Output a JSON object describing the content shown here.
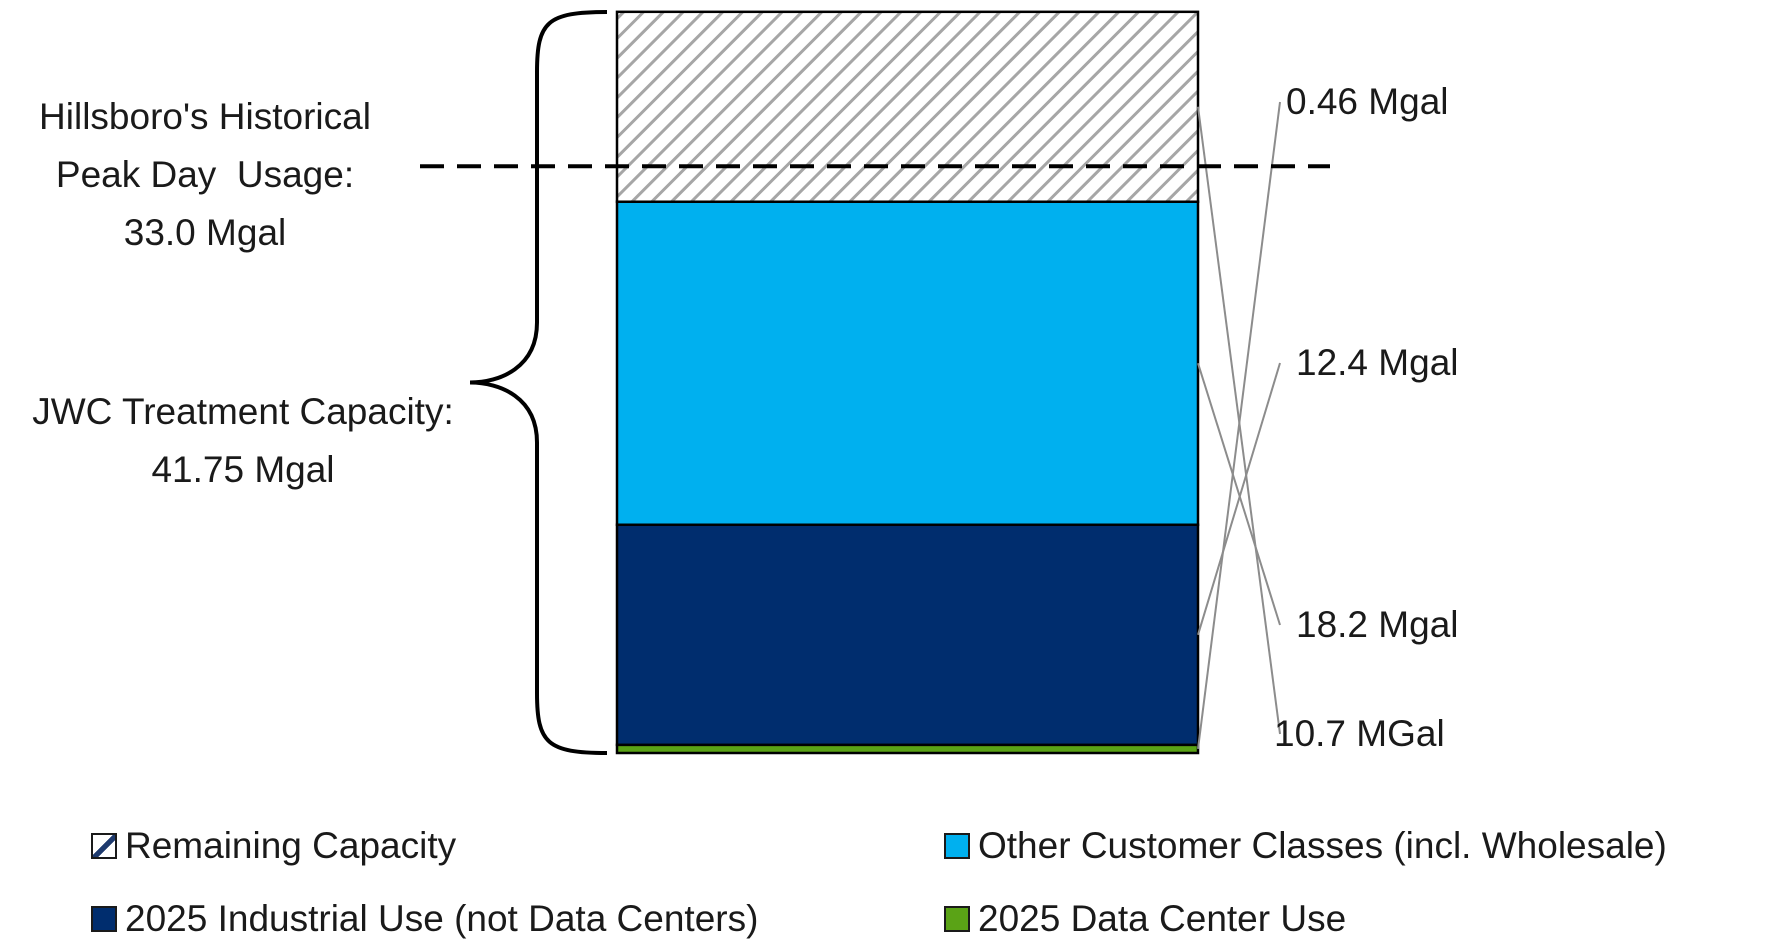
{
  "chart_data": {
    "type": "stacked-bar",
    "ylim": [
      0,
      41.75
    ],
    "segments": [
      {
        "name": "2025 Data Center Use",
        "value": 0.46,
        "label": "0.46 Mgal",
        "color": "#5aa316"
      },
      {
        "name": "2025 Industrial Use (not Data Centers)",
        "value": 12.4,
        "label": "12.4 Mgal",
        "color": "#002d6e"
      },
      {
        "name": "Other Customer Classes (incl. Wholesale)",
        "value": 18.2,
        "label": "18.2 Mgal",
        "color": "#00b0ef"
      },
      {
        "name": "Remaining Capacity",
        "value": 10.7,
        "label": "10.7 MGal",
        "color": "#a6a6a6",
        "pattern": "hatched"
      }
    ],
    "reference_line": {
      "value": 33.0,
      "style": "dashed",
      "color": "#000000"
    },
    "annotations": {
      "peak": {
        "lines": [
          "Hillsboro's Historical",
          "Peak Day  Usage:",
          "33.0 Mgal"
        ]
      },
      "capacity": {
        "lines": [
          "JWC Treatment Capacity:",
          "41.75 Mgal"
        ]
      }
    },
    "legend": {
      "placement": "bottom",
      "items": [
        {
          "label": "Remaining Capacity",
          "swatch": "hatched"
        },
        {
          "label": "Other Customer Classes (incl. Wholesale)",
          "swatch": "#00b0ef"
        },
        {
          "label": "2025 Industrial Use (not Data Centers)",
          "swatch": "#002d6e"
        },
        {
          "label": "2025 Data Center Use",
          "swatch": "#5aa316"
        }
      ]
    }
  }
}
